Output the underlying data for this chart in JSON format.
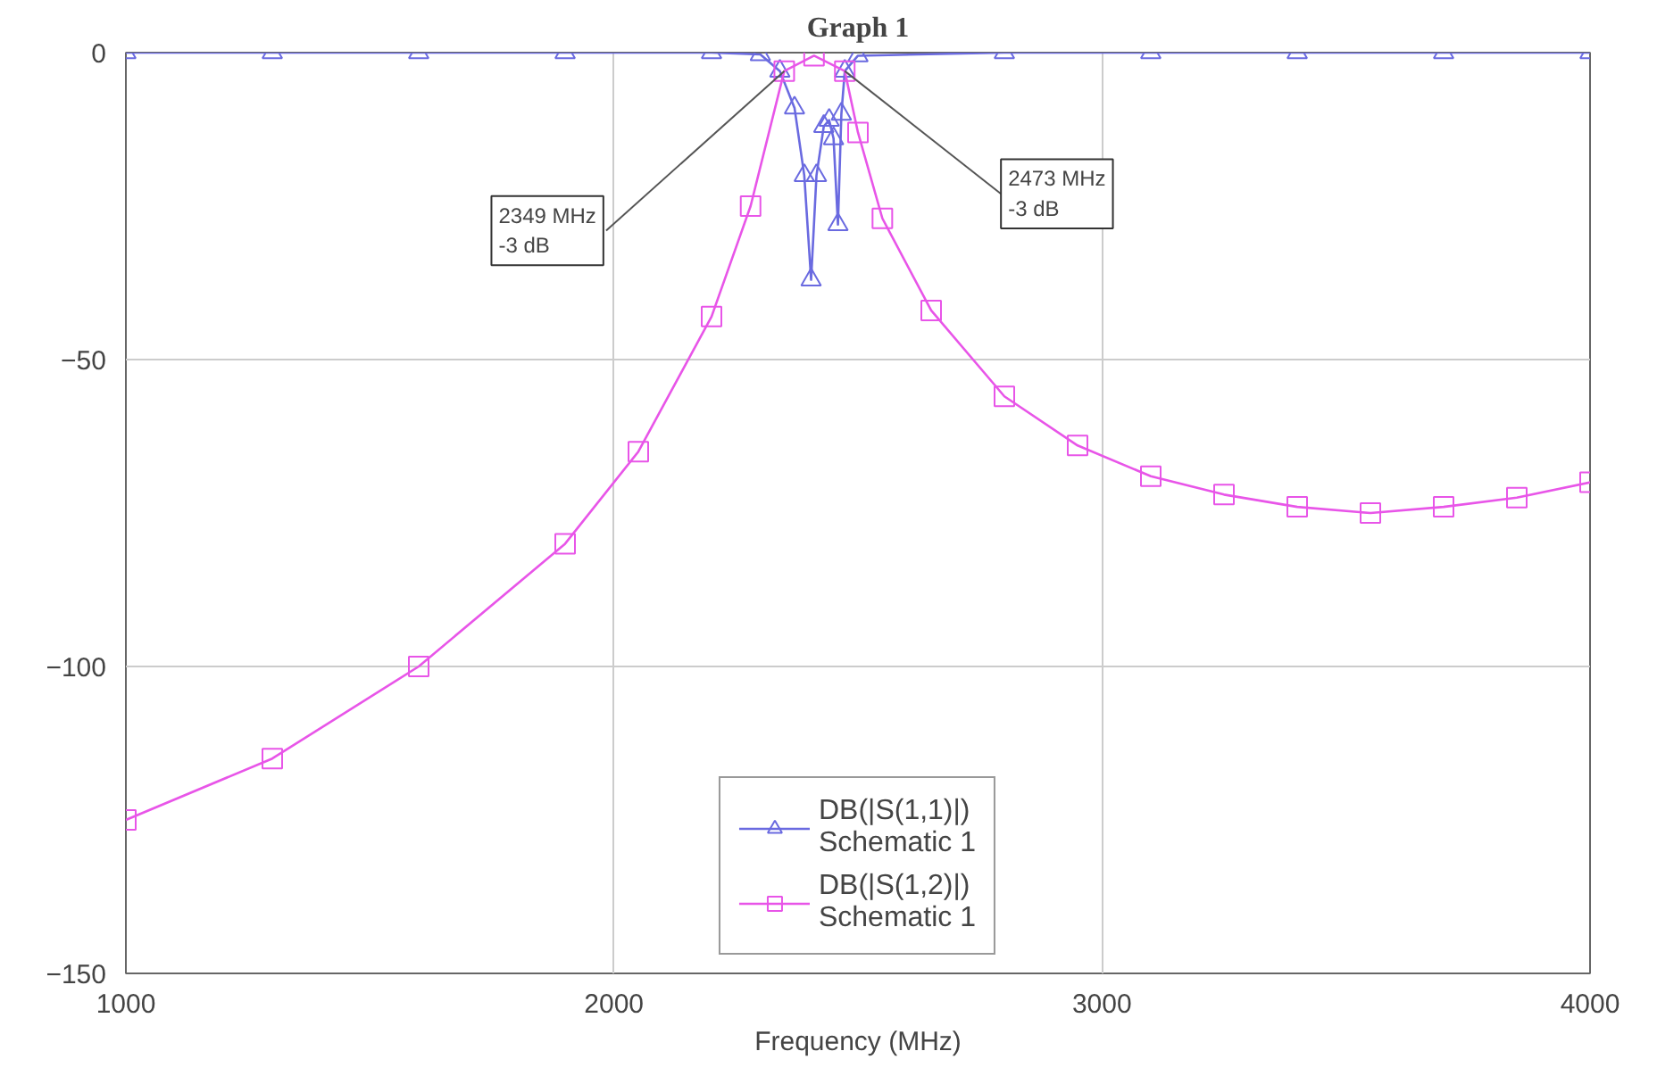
{
  "chart_data": {
    "type": "line",
    "title": "Graph 1",
    "xlabel": "Frequency (MHz)",
    "xlim": [
      1000,
      4000
    ],
    "ylim": [
      -150,
      0
    ],
    "xticks": [
      1000,
      2000,
      3000,
      4000
    ],
    "yticks": [
      -150,
      -100,
      -50,
      0
    ],
    "grid": true,
    "legend": "bottom",
    "line_style": "solid",
    "series": [
      {
        "name": "DB(|S(1,1)|)\nSchematic 1",
        "color": "#6a6ae0",
        "marker": "triangle",
        "x": [
          1000,
          1300,
          1600,
          1900,
          2200,
          2300,
          2340,
          2370,
          2390,
          2404,
          2415,
          2430,
          2441,
          2450,
          2459,
          2466,
          2473,
          2500,
          2800,
          3100,
          3400,
          3700,
          4000
        ],
        "values": [
          0,
          0,
          0,
          0,
          0,
          -0.3,
          -3,
          -9,
          -20,
          -37,
          -20,
          -12,
          -11,
          -14,
          -28,
          -10,
          -3,
          -0.5,
          0,
          0,
          0,
          0,
          0
        ]
      },
      {
        "name": "DB(|S(1,2)|)\nSchematic 1",
        "color": "#e855e8",
        "marker": "square",
        "x": [
          1000,
          1300,
          1600,
          1900,
          2050,
          2200,
          2280,
          2349,
          2410,
          2473,
          2500,
          2550,
          2650,
          2800,
          2950,
          3100,
          3250,
          3400,
          3550,
          3700,
          3850,
          4000
        ],
        "values": [
          -125,
          -115,
          -100,
          -80,
          -65,
          -43,
          -25,
          -3,
          -0.5,
          -3,
          -13,
          -27,
          -42,
          -56,
          -64,
          -69,
          -72,
          -74,
          -75,
          -74,
          -72.5,
          -70
        ]
      }
    ],
    "annotations": [
      {
        "text": "2349 MHz\n-3 dB",
        "x": 2349,
        "y": -3
      },
      {
        "text": "2473 MHz\n-3 dB",
        "x": 2473,
        "y": -3
      }
    ]
  }
}
